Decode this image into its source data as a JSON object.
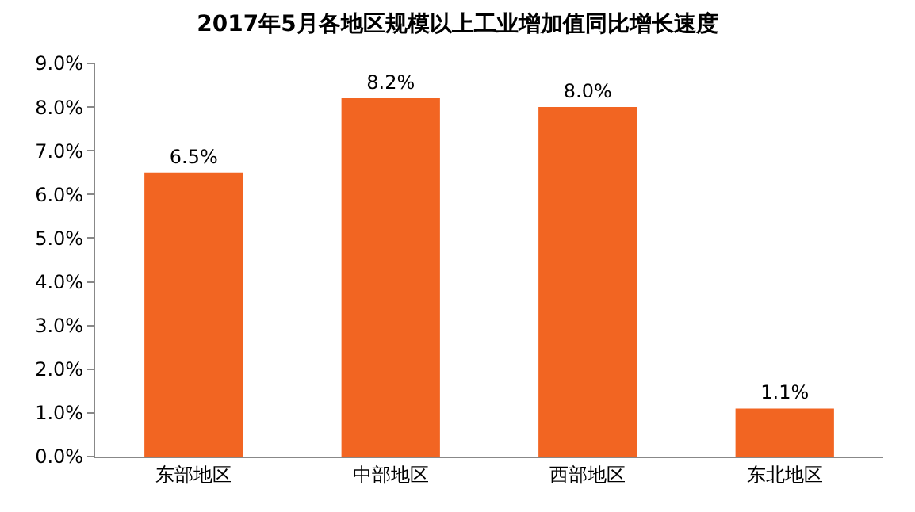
{
  "chart_data": {
    "type": "bar",
    "title": "2017年5月各地区规模以上工业增加值同比增长速度",
    "categories": [
      "东部地区",
      "中部地区",
      "西部地区",
      "东北地区"
    ],
    "values": [
      6.5,
      8.2,
      8.0,
      1.1
    ],
    "value_labels": [
      "6.5%",
      "8.2%",
      "8.0%",
      "1.1%"
    ],
    "color": "#f26522",
    "ylim": [
      0,
      9
    ],
    "yticks": [
      {
        "value": 0,
        "label": "0.0%"
      },
      {
        "value": 1,
        "label": "1.0%"
      },
      {
        "value": 2,
        "label": "2.0%"
      },
      {
        "value": 3,
        "label": "3.0%"
      },
      {
        "value": 4,
        "label": "4.0%"
      },
      {
        "value": 5,
        "label": "5.0%"
      },
      {
        "value": 6,
        "label": "6.0%"
      },
      {
        "value": 7,
        "label": "7.0%"
      },
      {
        "value": 8,
        "label": "8.0%"
      },
      {
        "value": 9,
        "label": "9.0%"
      }
    ],
    "grid": false
  }
}
